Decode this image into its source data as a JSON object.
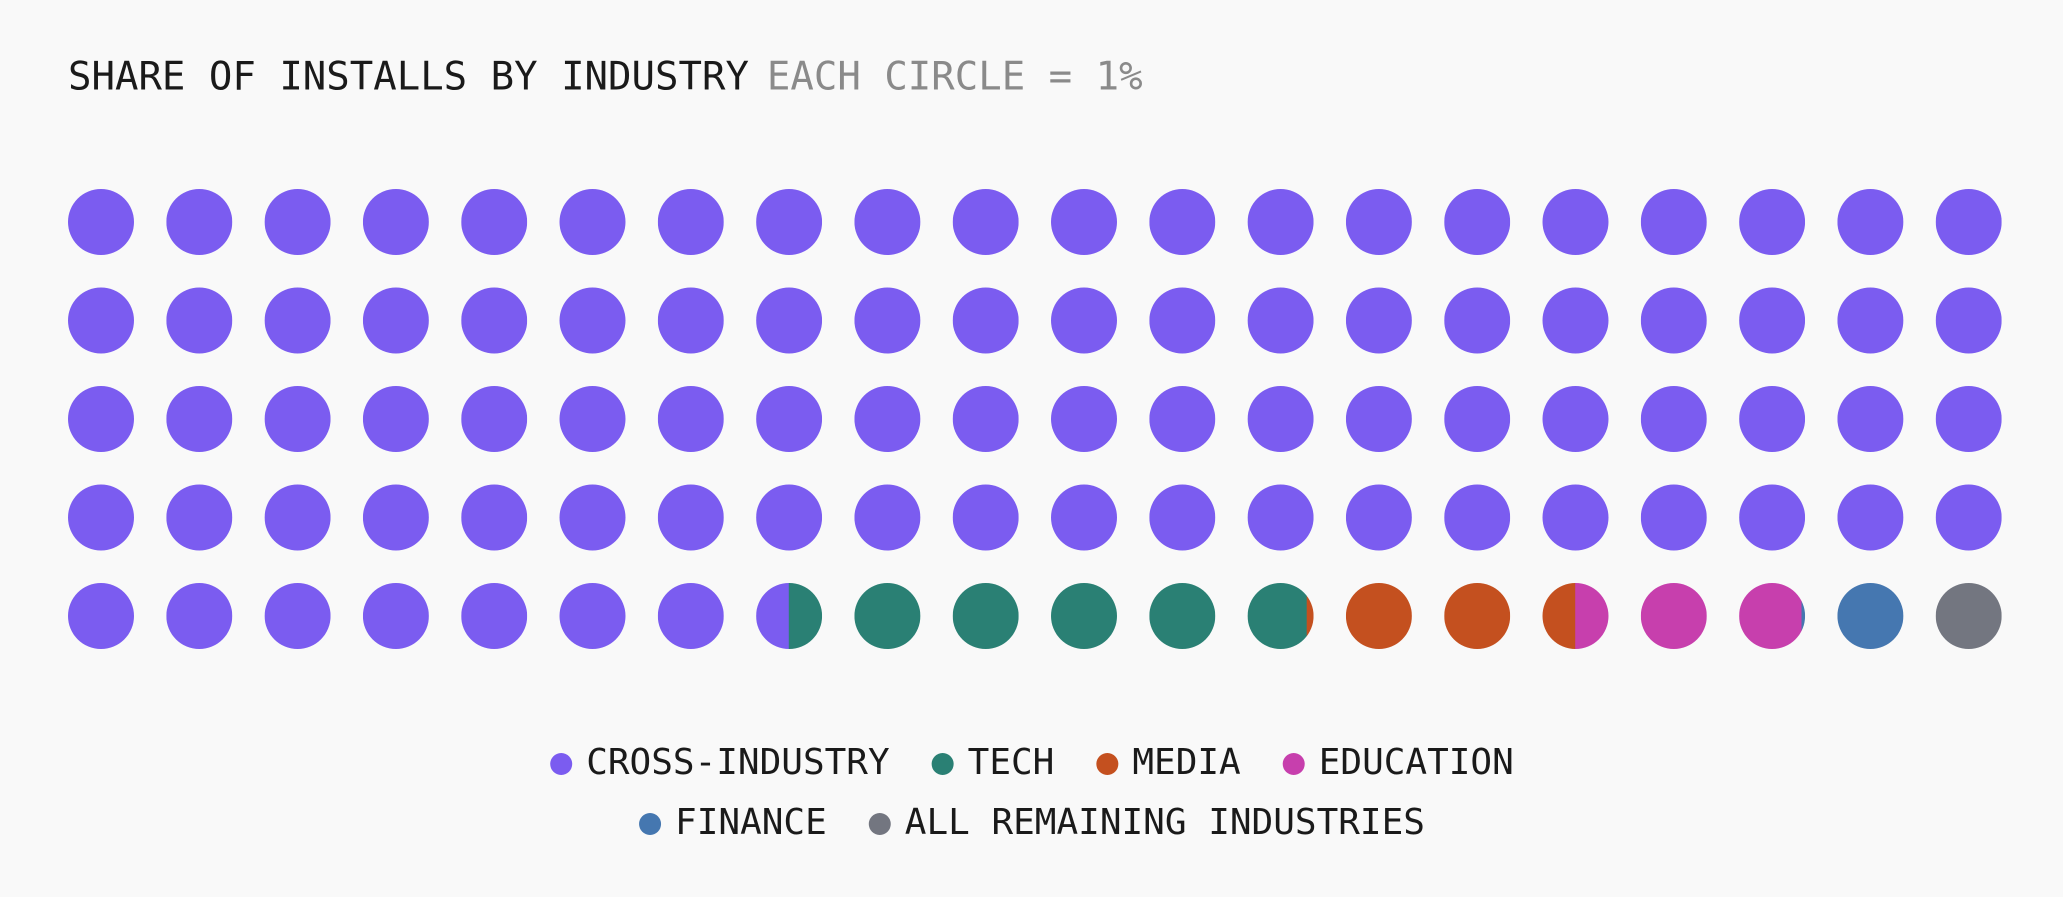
{
  "chart_data": {
    "type": "waffle",
    "title": "SHARE OF INSTALLS BY INDUSTRY",
    "subtitle": "EACH CIRCLE = 1%",
    "series": [
      {
        "name": "CROSS-INDUSTRY",
        "color": "#7b5cf0",
        "values": [
          87.5
        ]
      },
      {
        "name": "TECH",
        "color": "#2a8074",
        "values": [
          5.4
        ]
      },
      {
        "name": "MEDIA",
        "color": "#c4501f",
        "values": [
          2.6
        ]
      },
      {
        "name": "EDUCATION",
        "color": "#c73fad",
        "values": [
          2.45
        ]
      },
      {
        "name": "FINANCE",
        "color": "#4577b0",
        "values": [
          1.05
        ]
      },
      {
        "name": "ALL REMAINING INDUSTRIES",
        "color": "#737680",
        "values": [
          1
        ]
      }
    ]
  }
}
